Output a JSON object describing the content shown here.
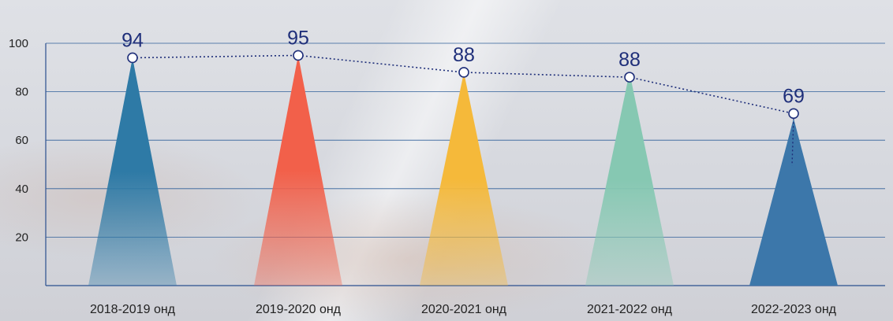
{
  "chart_data": {
    "type": "bar",
    "title": "",
    "xlabel": "",
    "ylabel": "",
    "ylim": [
      0,
      100
    ],
    "yticks": [
      20,
      40,
      60,
      80,
      100
    ],
    "grid": true,
    "categories": [
      "2018-2019 онд",
      "2019-2020 онд",
      "2020-2021 онд",
      "2021-2022 онд",
      "2022-2023 онд"
    ],
    "series": [
      {
        "values": [
          94,
          95,
          88,
          88,
          69
        ]
      }
    ],
    "data_labels": [
      "94",
      "95",
      "88",
      "88",
      "69"
    ],
    "line_values": [
      94,
      95,
      88,
      86,
      71
    ],
    "colors": [
      "#2e7aa6",
      "#f2604a",
      "#f5b93a",
      "#86c8b2",
      "#3c77aa"
    ],
    "grid_color": "#2f5f99",
    "axis_color": "#2b4f8f",
    "line_color": "#1f2f7a",
    "label_color": "#1f2f7a"
  }
}
